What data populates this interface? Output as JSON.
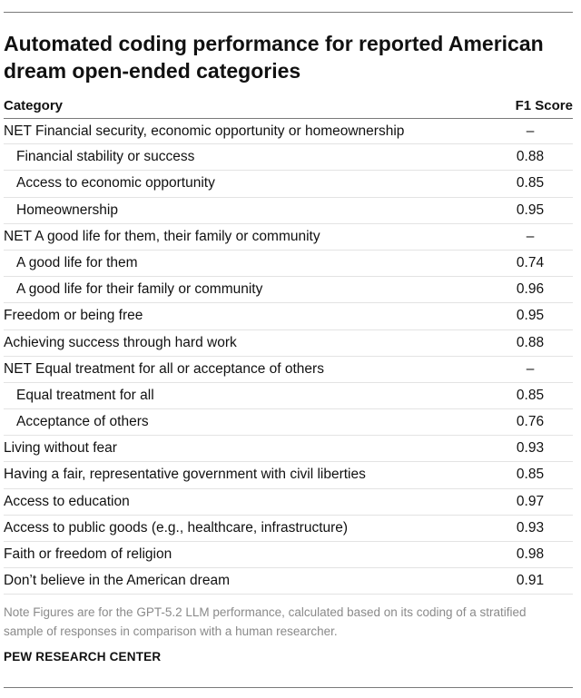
{
  "title": "Automated coding performance for reported American dream open-ended categories",
  "table": {
    "headers": {
      "category": "Category",
      "score": "F1 Score"
    },
    "rows": [
      {
        "category": "NET Financial security, economic opportunity or homeownership",
        "score": "–",
        "indent": false
      },
      {
        "category": "Financial stability or success",
        "score": "0.88",
        "indent": true
      },
      {
        "category": "Access to economic opportunity",
        "score": "0.85",
        "indent": true
      },
      {
        "category": "Homeownership",
        "score": "0.95",
        "indent": true
      },
      {
        "category": "NET A good life for them, their family or community",
        "score": "–",
        "indent": false
      },
      {
        "category": "A good life for them",
        "score": "0.74",
        "indent": true
      },
      {
        "category": "A good life for their family or community",
        "score": "0.96",
        "indent": true
      },
      {
        "category": "Freedom or being free",
        "score": "0.95",
        "indent": false
      },
      {
        "category": "Achieving success through hard work",
        "score": "0.88",
        "indent": false
      },
      {
        "category": "NET Equal treatment for all or acceptance of others",
        "score": "–",
        "indent": false
      },
      {
        "category": "Equal treatment for all",
        "score": "0.85",
        "indent": true
      },
      {
        "category": "Acceptance of others",
        "score": "0.76",
        "indent": true
      },
      {
        "category": "Living without fear",
        "score": "0.93",
        "indent": false
      },
      {
        "category": "Having a fair, representative government with civil liberties",
        "score": "0.85",
        "indent": false
      },
      {
        "category": "Access to education",
        "score": "0.97",
        "indent": false
      },
      {
        "category": "Access to public goods (e.g., healthcare, infrastructure)",
        "score": "0.93",
        "indent": false
      },
      {
        "category": "Faith or freedom of religion",
        "score": "0.98",
        "indent": false
      },
      {
        "category": "Don’t believe in the American dream",
        "score": "0.91",
        "indent": false
      }
    ]
  },
  "note": "Note Figures are for the GPT-5.2 LLM performance, calculated based on its coding of a stratified sample of responses in comparison with a human researcher.",
  "source": "PEW RESEARCH CENTER"
}
